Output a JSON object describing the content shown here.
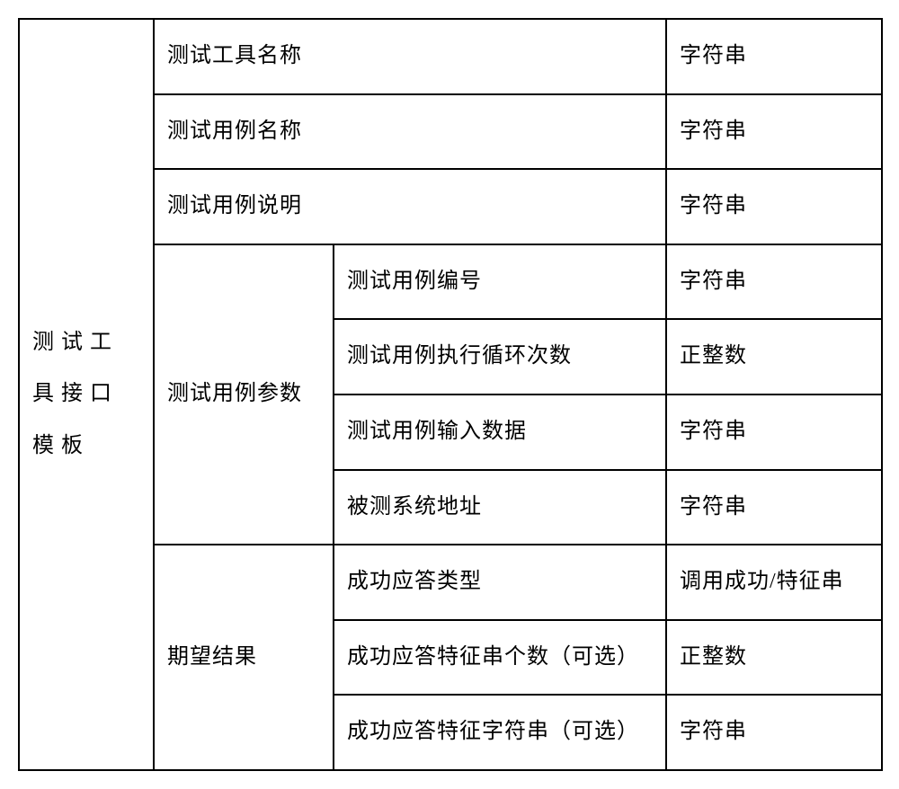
{
  "table": {
    "border_color": "#000000",
    "background_color": "#ffffff",
    "text_color": "#000000",
    "font_family": "KaiTi",
    "cell_font_size": 24,
    "columns": {
      "a": 150,
      "b": 200,
      "c": 370,
      "d": 240
    },
    "colA_label": "测 试 工\n具 接 口\n模 板",
    "rows": [
      {
        "b_span2": "测试工具名称",
        "d": "字符串"
      },
      {
        "b_span2": "测试用例名称",
        "d": "字符串"
      },
      {
        "b_span2": "测试用例说明",
        "d": "字符串"
      },
      {
        "b_group": "测试用例参数",
        "c": "测试用例编号",
        "d": "字符串"
      },
      {
        "c": "测试用例执行循环次数",
        "d": "正整数"
      },
      {
        "c": "测试用例输入数据",
        "d": "字符串"
      },
      {
        "c": "被测系统地址",
        "d": "字符串"
      },
      {
        "b_group": "期望结果",
        "c": "成功应答类型",
        "d": "调用成功/特征串"
      },
      {
        "c": "成功应答特征串个数（可选）",
        "d": "正整数"
      },
      {
        "c": "成功应答特征字符串（可选）",
        "d": "字符串"
      }
    ]
  }
}
